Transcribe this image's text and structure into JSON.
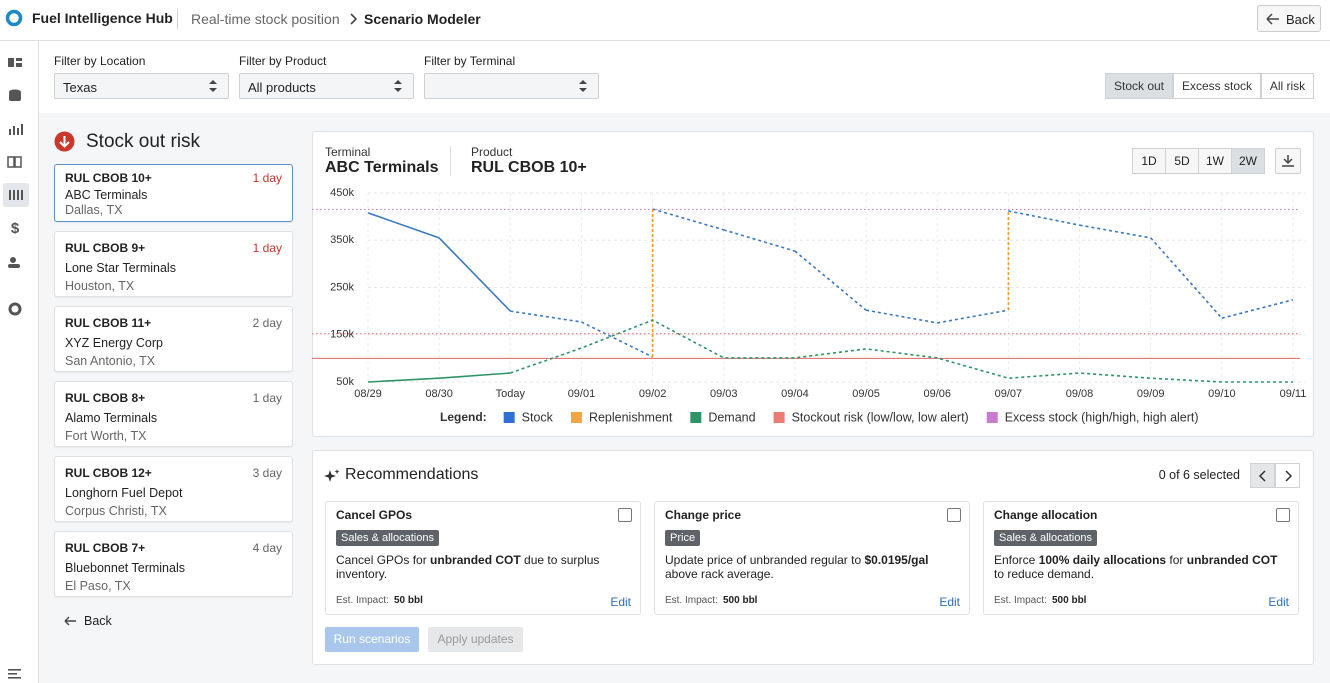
{
  "header": {
    "app_name": "Fuel Intelligence Hub",
    "breadcrumb": [
      "Real-time stock position",
      "Scenario Modeler"
    ],
    "back": "Back"
  },
  "filters": [
    {
      "label": "Filter by Location",
      "value": "Texas"
    },
    {
      "label": "Filter by Product",
      "value": "All products"
    },
    {
      "label": "Filter by Terminal"
    }
  ],
  "risk_toggle": {
    "options": [
      "Stock out",
      "Excess stock",
      "All risk"
    ],
    "selected": "Stock out"
  },
  "risk_list": {
    "title": "Stock out risk",
    "items": [
      {
        "product": "RUL CBOB 10+",
        "terminal": "ABC Terminals",
        "location": "Dallas, TX",
        "days": "1 day",
        "urgent": true,
        "selected": true
      },
      {
        "product": "RUL CBOB 9+",
        "terminal": "Lone Star Terminals",
        "location": "Houston, TX",
        "days": "1 day",
        "urgent": true
      },
      {
        "product": "RUL CBOB 11+",
        "terminal": "XYZ Energy Corp",
        "location": "San Antonio, TX",
        "days": "2 day"
      },
      {
        "product": "RUL CBOB 8+",
        "terminal": "Alamo Terminals",
        "location": "Fort Worth, TX",
        "days": "1 day"
      },
      {
        "product": "RUL CBOB 12+",
        "terminal": "Longhorn Fuel Depot",
        "location": "Corpus Christi, TX",
        "days": "3 day"
      },
      {
        "product": "RUL CBOB 7+",
        "terminal": "Bluebonnet Terminals",
        "location": "El Paso, TX",
        "days": "4 day"
      }
    ],
    "back": "Back"
  },
  "chart_panel": {
    "terminal_label": "Terminal",
    "terminal": "ABC Terminals",
    "product_label": "Product",
    "product": "RUL CBOB 10+",
    "ranges": [
      "1D",
      "5D",
      "1W",
      "2W"
    ],
    "selected_range": "2W",
    "legend_label": "Legend:"
  },
  "chart_data": {
    "type": "line",
    "categories": [
      "08/29",
      "08/30",
      "Today",
      "09/01",
      "09/02",
      "09/03",
      "09/04",
      "09/05",
      "09/06",
      "09/07",
      "09/08",
      "09/09",
      "09/10",
      "09/11"
    ],
    "actual_through": "Today",
    "ylim": [
      50000,
      450000
    ],
    "yticks": [
      {
        "value": 50000,
        "label": "50k"
      },
      {
        "value": 150000,
        "label": "150k"
      },
      {
        "value": 250000,
        "label": "250k"
      },
      {
        "value": 350000,
        "label": "350k"
      },
      {
        "value": 450000,
        "label": "450k"
      }
    ],
    "grid": true,
    "series": [
      {
        "name": "Stock",
        "color": "#3a78c2",
        "legend_color": "#2f6fd6",
        "values": [
          408000,
          355000,
          200000,
          177000,
          103000,
          372000,
          327000,
          202000,
          175000,
          202000,
          382000,
          355000,
          185000,
          224000
        ]
      },
      {
        "name": "Replenishment",
        "color": "#f09a2a",
        "legend_color": "#f2a541",
        "values": [
          null,
          null,
          null,
          null,
          313000,
          null,
          null,
          null,
          null,
          210000,
          null,
          null,
          null,
          null
        ]
      },
      {
        "name": "Demand",
        "color": "#2e9468",
        "legend_color": "#2e9468",
        "values": [
          50000,
          58000,
          69000,
          122000,
          181000,
          101000,
          101000,
          120000,
          101000,
          58000,
          69000,
          58000,
          50000,
          50000
        ]
      },
      {
        "name": "Stockout risk (low/low, low alert)",
        "color": "#e06666",
        "legend_color": "#ec7b72",
        "levels": [
          100000,
          152000
        ],
        "line_styles": [
          "solid",
          "dotted"
        ]
      },
      {
        "name": "Excess stock (high/high, high alert)",
        "color": "#cc77cc",
        "legend_color": "#c97bd0",
        "levels": [
          415000
        ],
        "line_styles": [
          "dotted"
        ]
      }
    ]
  },
  "recommendations": {
    "title": "Recommendations",
    "selection": "0 of 6 selected",
    "cards": [
      {
        "title": "Cancel GPOs",
        "tag": "Sales & allocations",
        "description": [
          {
            "text": "Cancel GPOs for "
          },
          {
            "text": "unbranded COT",
            "bold": true
          },
          {
            "text": " due to surplus inventory."
          }
        ],
        "impact_label": "Est. Impact:",
        "impact": "50 bbl",
        "edit": "Edit"
      },
      {
        "title": "Change price",
        "tag": "Price",
        "description": [
          {
            "text": "Update price of unbranded regular to "
          },
          {
            "text": "$0.0195/gal",
            "bold": true
          },
          {
            "text": " above rack average."
          }
        ],
        "impact_label": "Est. Impact:",
        "impact": "500 bbl",
        "edit": "Edit"
      },
      {
        "title": "Change allocation",
        "tag": "Sales & allocations",
        "description": [
          {
            "text": "Enforce "
          },
          {
            "text": "100% daily allocations",
            "bold": true
          },
          {
            "text": " for "
          },
          {
            "text": "unbranded COT",
            "bold": true
          },
          {
            "text": " to reduce demand."
          }
        ],
        "impact_label": "Est. Impact:",
        "impact": "500 bbl",
        "edit": "Edit"
      }
    ],
    "run": "Run scenarios",
    "apply": "Apply updates"
  }
}
